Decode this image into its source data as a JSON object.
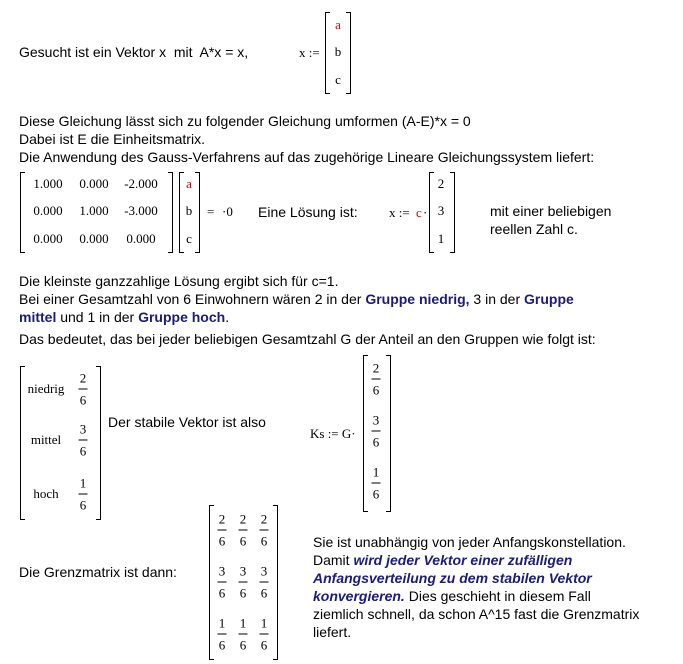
{
  "intro": {
    "text": "Gesucht ist ein Vektor x  mit  A*x = x,",
    "def_lhs": "x :=",
    "vector": [
      "a",
      "b",
      "c"
    ]
  },
  "lines1": [
    "Diese Gleichung lässt sich zu folgender Gleichung umformen (A-E)*x = 0",
    "Dabei ist E die Einheitsmatrix.",
    "Die Anwendung des Gauss-Verfahrens auf das zugehörige Lineare Gleichungssystem liefert:"
  ],
  "system": {
    "matrix": [
      [
        "1.000",
        "0.000",
        "-2.000"
      ],
      [
        "0.000",
        "1.000",
        "-3.000"
      ],
      [
        "0.000",
        "0.000",
        "0.000"
      ]
    ],
    "vector": [
      "a",
      "b",
      "c"
    ],
    "equals": "=",
    "rhs": "·0",
    "solution_label": "Eine Lösung ist:",
    "solution_lhs": "x :=",
    "solution_factor": "c",
    "solution_dot": "·",
    "solution_vector": [
      "2",
      "3",
      "1"
    ],
    "note": [
      "mit einer beliebigen",
      "reellen Zahl c."
    ]
  },
  "paragraph": [
    [
      {
        "text": "Die kleinste ganzzahlige Lösung ergibt sich für c=1.",
        "style": "normal"
      }
    ],
    [
      {
        "text": "Bei einer Gesamtzahl von 6 Einwohnern wären 2 in der ",
        "style": "normal"
      },
      {
        "text": "Gruppe niedrig,",
        "style": "bold"
      },
      {
        "text": " 3 in der ",
        "style": "normal"
      },
      {
        "text": "Gruppe",
        "style": "bold"
      }
    ],
    [
      {
        "text": "mittel",
        "style": "bold"
      },
      {
        "text": " und 1 in der ",
        "style": "normal"
      },
      {
        "text": "Gruppe hoch",
        "style": "bold"
      },
      {
        "text": ".",
        "style": "normal"
      }
    ],
    [
      {
        "text": "Das bedeutet, das bei jeder beliebigen Gesamtzahl G der Anteil an den Gruppen wie folgt ist:",
        "style": "normal"
      }
    ]
  ],
  "groups": [
    {
      "label": "niedrig",
      "num": "2",
      "den": "6"
    },
    {
      "label": "mittel",
      "num": "3",
      "den": "6"
    },
    {
      "label": "hoch",
      "num": "1",
      "den": "6"
    }
  ],
  "stable_text": "Der stabile Vektor ist also",
  "ks": {
    "lhs": "Ks := G·",
    "vector": [
      {
        "num": "2",
        "den": "6"
      },
      {
        "num": "3",
        "den": "6"
      },
      {
        "num": "1",
        "den": "6"
      }
    ]
  },
  "limit_label": "Die Grenzmatrix ist dann:",
  "limit_matrix": [
    [
      {
        "num": "2",
        "den": "6"
      },
      {
        "num": "2",
        "den": "6"
      },
      {
        "num": "2",
        "den": "6"
      }
    ],
    [
      {
        "num": "3",
        "den": "6"
      },
      {
        "num": "3",
        "den": "6"
      },
      {
        "num": "3",
        "den": "6"
      }
    ],
    [
      {
        "num": "1",
        "den": "6"
      },
      {
        "num": "1",
        "den": "6"
      },
      {
        "num": "1",
        "den": "6"
      }
    ]
  ],
  "conclusion": [
    [
      {
        "text": "Sie ist unabhängig von jeder Anfangskonstellation.",
        "style": "normal"
      }
    ],
    [
      {
        "text": "Damit ",
        "style": "normal"
      },
      {
        "text": "wird jeder Vektor einer zufälligen",
        "style": "bolditalic"
      }
    ],
    [
      {
        "text": "Anfangsverteilung zu dem stabilen Vektor",
        "style": "bolditalic"
      }
    ],
    [
      {
        "text": "konvergieren.",
        "style": "bolditalic"
      },
      {
        "text": " Dies geschieht in diesem Fall",
        "style": "normal"
      }
    ],
    [
      {
        "text": "ziemlich schnell, da schon A^15 fast die Grenzmatrix",
        "style": "normal"
      }
    ],
    [
      {
        "text": "liefert.",
        "style": "normal"
      }
    ]
  ]
}
